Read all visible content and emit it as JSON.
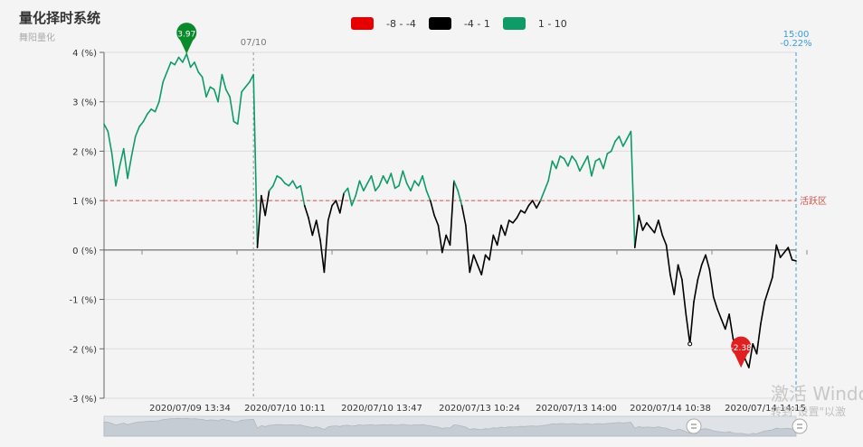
{
  "header": {
    "title": "量化择时系统",
    "subtitle": "舞阳量化"
  },
  "legend": [
    {
      "label": "-8 - -4",
      "color": "#e60000"
    },
    {
      "label": "-4 - 1",
      "color": "#000000"
    },
    {
      "label": "1 - 10",
      "color": "#0e9b68"
    }
  ],
  "watermark": {
    "line1": "激活 Windo",
    "line2": "转到\"设置\"以激"
  },
  "chart_data": {
    "type": "line",
    "title": "量化择时系统",
    "subtitle": "舞阳量化",
    "y_unit": "%",
    "ylim": [
      -3,
      4
    ],
    "y_ticks": [
      "4 (%)",
      "3 (%)",
      "2 (%)",
      "1 (%)",
      "0 (%)",
      "-1 (%)",
      "-2 (%)",
      "-3 (%)"
    ],
    "x_ticks": [
      "2020/07/09 13:34",
      "2020/07/10 10:11",
      "2020/07/10 13:47",
      "2020/07/13 10:24",
      "2020/07/13 14:00",
      "2020/07/14 10:38",
      "2020/07/14 14:15"
    ],
    "grid": true,
    "threshold": {
      "value": 1,
      "label": "活跃区"
    },
    "day_marker": {
      "label": "07/10",
      "x_index": 38
    },
    "crosshair": {
      "time_label": "15:00",
      "value_label": "-0.22%",
      "x_index": 176
    },
    "max_marker": {
      "label": "3.97",
      "x_index": 21,
      "value": 3.97
    },
    "min_marker": {
      "label": "-2.38",
      "x_index": 162,
      "value": -2.38
    },
    "colors": {
      "low": "#e60000",
      "mid": "#000000",
      "high": "#0e9b68",
      "threshold": "#d9534f",
      "crosshair": "#3a9bd9"
    },
    "values": [
      2.55,
      2.4,
      1.95,
      1.3,
      1.7,
      2.05,
      1.45,
      1.9,
      2.3,
      2.5,
      2.6,
      2.75,
      2.85,
      2.8,
      3.0,
      3.4,
      3.6,
      3.8,
      3.75,
      3.9,
      3.8,
      3.97,
      3.7,
      3.8,
      3.6,
      3.5,
      3.1,
      3.3,
      3.25,
      3.0,
      3.55,
      3.25,
      3.1,
      2.6,
      2.55,
      3.2,
      3.3,
      3.4,
      3.55,
      0.05,
      1.1,
      0.7,
      1.2,
      1.3,
      1.5,
      1.45,
      1.35,
      1.3,
      1.4,
      1.25,
      1.3,
      0.9,
      0.65,
      0.3,
      0.6,
      0.2,
      -0.45,
      0.6,
      0.9,
      1.0,
      0.75,
      1.15,
      1.25,
      0.9,
      1.1,
      1.4,
      1.2,
      1.35,
      1.5,
      1.2,
      1.3,
      1.5,
      1.35,
      1.55,
      1.25,
      1.3,
      1.6,
      1.35,
      1.2,
      1.4,
      1.3,
      1.5,
      1.2,
      1.0,
      0.7,
      0.5,
      -0.05,
      0.3,
      0.1,
      1.4,
      1.2,
      0.9,
      0.5,
      -0.45,
      -0.1,
      -0.3,
      -0.5,
      -0.1,
      -0.2,
      0.3,
      0.1,
      0.5,
      0.3,
      0.6,
      0.55,
      0.65,
      0.8,
      0.75,
      0.9,
      1.0,
      0.85,
      1.0,
      1.2,
      1.4,
      1.8,
      1.65,
      1.9,
      1.85,
      1.7,
      1.9,
      1.8,
      1.6,
      1.75,
      1.9,
      1.5,
      1.8,
      1.85,
      1.65,
      1.95,
      2.0,
      2.2,
      2.3,
      2.1,
      2.25,
      2.4,
      0.05,
      0.7,
      0.4,
      0.55,
      0.45,
      0.35,
      0.6,
      0.3,
      0.1,
      -0.5,
      -0.9,
      -0.3,
      -0.6,
      -1.3,
      -1.9,
      -1.05,
      -0.6,
      -0.3,
      -0.1,
      -0.4,
      -0.95,
      -1.2,
      -1.4,
      -1.6,
      -1.3,
      -1.8,
      -2.0,
      -1.9,
      -2.2,
      -2.38,
      -1.9,
      -2.1,
      -1.5,
      -1.05,
      -0.8,
      -0.55,
      0.1,
      -0.15,
      -0.05,
      0.05,
      -0.2,
      -0.22
    ]
  }
}
